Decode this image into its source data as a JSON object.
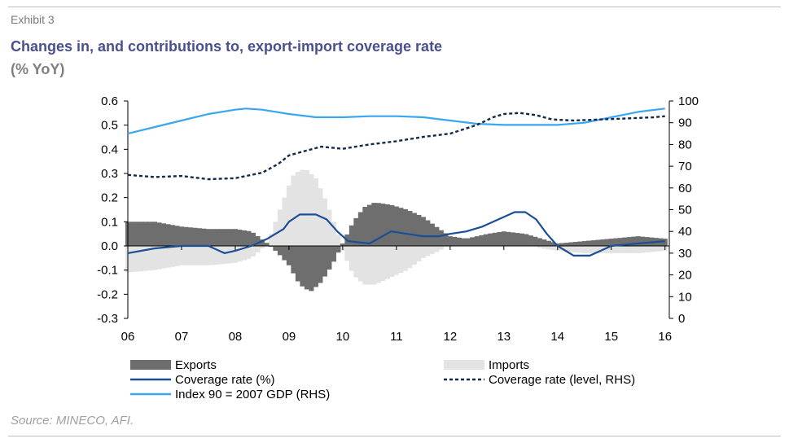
{
  "header": {
    "exhibit": "Exhibit 3",
    "title": "Changes in, and contributions to, export-import coverage rate",
    "subtitle": "(% YoY)"
  },
  "source": "Source: MINECO, AFI.",
  "colors": {
    "exports": "#6e6e6e",
    "imports": "#e3e3e3",
    "coverage_pct": "#1a4f96",
    "coverage_level": "#13294b",
    "index_gdp": "#3aa6f0",
    "title": "#4a4f8f"
  },
  "chart_data": {
    "type": "bar",
    "x_tick_labels": [
      "06",
      "07",
      "08",
      "09",
      "10",
      "11",
      "12",
      "13",
      "14",
      "15",
      "16"
    ],
    "x_range": [
      2006.0,
      2016.08
    ],
    "y_left": {
      "ticks": [
        "0.6",
        "0.5",
        "0.4",
        "0.3",
        "0.2",
        "0.1",
        "0.0",
        "-0.1",
        "-0.2",
        "-0.3"
      ],
      "range": [
        -0.3,
        0.6
      ]
    },
    "y_right": {
      "ticks": [
        "100",
        "90",
        "80",
        "70",
        "60",
        "50",
        "40",
        "30",
        "20",
        "10",
        "0"
      ],
      "range": [
        0,
        100
      ]
    },
    "grid": false,
    "legend_position": "bottom",
    "series": [
      {
        "key": "exports",
        "name": "Exports",
        "type": "bar",
        "axis": "left",
        "x": [
          2006.0,
          2006.5,
          2007.0,
          2007.5,
          2008.0,
          2008.3,
          2008.6,
          2008.8,
          2009.0,
          2009.2,
          2009.4,
          2009.6,
          2009.8,
          2010.0,
          2010.2,
          2010.4,
          2010.6,
          2010.9,
          2011.2,
          2011.5,
          2011.8,
          2012.0,
          2012.3,
          2012.7,
          2013.0,
          2013.4,
          2013.7,
          2014.0,
          2014.5,
          2015.0,
          2015.5,
          2016.0
        ],
        "values": [
          0.1,
          0.1,
          0.08,
          0.07,
          0.07,
          0.06,
          0.01,
          -0.03,
          -0.08,
          -0.16,
          -0.19,
          -0.15,
          -0.08,
          0.01,
          0.1,
          0.16,
          0.18,
          0.17,
          0.15,
          0.12,
          0.07,
          0.04,
          0.03,
          0.05,
          0.06,
          0.05,
          0.03,
          0.01,
          0.02,
          0.03,
          0.04,
          0.03
        ]
      },
      {
        "key": "imports",
        "name": "Imports",
        "type": "bar",
        "axis": "left",
        "x": [
          2006.0,
          2006.5,
          2007.0,
          2007.5,
          2008.0,
          2008.3,
          2008.6,
          2008.8,
          2009.0,
          2009.1,
          2009.3,
          2009.5,
          2009.7,
          2009.9,
          2010.0,
          2010.2,
          2010.4,
          2010.6,
          2010.9,
          2011.2,
          2011.5,
          2011.8,
          2012.0,
          2012.3,
          2012.7,
          2013.0,
          2013.4,
          2013.7,
          2014.0,
          2014.5,
          2015.0,
          2015.5,
          2016.0
        ],
        "values": [
          -0.11,
          -0.1,
          -0.08,
          -0.08,
          -0.07,
          -0.05,
          0.01,
          0.13,
          0.25,
          0.3,
          0.32,
          0.28,
          0.18,
          0.06,
          -0.02,
          -0.12,
          -0.16,
          -0.16,
          -0.13,
          -0.1,
          -0.05,
          -0.02,
          0.01,
          0.02,
          0.01,
          0.02,
          0.01,
          -0.01,
          -0.02,
          -0.03,
          -0.03,
          -0.03,
          -0.02
        ]
      },
      {
        "key": "coverage_pct",
        "name": "Coverage rate (%)",
        "type": "line",
        "axis": "left",
        "x": [
          2006.0,
          2006.5,
          2007.0,
          2007.5,
          2007.8,
          2008.0,
          2008.3,
          2008.6,
          2008.9,
          2009.0,
          2009.2,
          2009.5,
          2009.7,
          2009.9,
          2010.1,
          2010.5,
          2010.9,
          2011.2,
          2011.5,
          2011.8,
          2012.0,
          2012.3,
          2012.6,
          2012.9,
          2013.2,
          2013.4,
          2013.6,
          2013.8,
          2014.0,
          2014.3,
          2014.6,
          2015.0,
          2015.5,
          2016.0
        ],
        "values": [
          -0.03,
          -0.01,
          0.0,
          0.0,
          -0.03,
          -0.02,
          0.0,
          0.03,
          0.07,
          0.1,
          0.13,
          0.13,
          0.11,
          0.06,
          0.02,
          0.01,
          0.06,
          0.05,
          0.04,
          0.04,
          0.05,
          0.06,
          0.08,
          0.11,
          0.14,
          0.14,
          0.11,
          0.05,
          0.0,
          -0.04,
          -0.04,
          0.0,
          0.01,
          0.02
        ]
      },
      {
        "key": "coverage_level",
        "name": "Coverage rate (level, RHS)",
        "type": "line",
        "axis": "right",
        "x": [
          2006.0,
          2006.5,
          2007.0,
          2007.5,
          2008.0,
          2008.5,
          2008.8,
          2009.0,
          2009.3,
          2009.6,
          2010.0,
          2010.5,
          2011.0,
          2011.5,
          2012.0,
          2012.5,
          2012.8,
          2013.0,
          2013.3,
          2013.6,
          2013.9,
          2014.3,
          2014.8,
          2015.3,
          2015.8,
          2016.0
        ],
        "values": [
          66,
          65,
          65.5,
          64,
          64.5,
          67,
          71,
          75,
          77,
          79,
          78,
          80,
          81.5,
          83.5,
          85,
          89,
          92.5,
          94,
          94.5,
          93.5,
          91.5,
          91,
          91.5,
          92,
          92.5,
          93
        ]
      },
      {
        "key": "index_gdp",
        "name": "Index 90 = 2007 GDP  (RHS)",
        "type": "line",
        "axis": "right",
        "x": [
          2006.0,
          2006.5,
          2007.0,
          2007.5,
          2008.0,
          2008.2,
          2008.5,
          2009.0,
          2009.5,
          2010.0,
          2010.5,
          2011.0,
          2011.5,
          2012.0,
          2012.5,
          2013.0,
          2013.5,
          2014.0,
          2014.5,
          2015.0,
          2015.5,
          2016.0
        ],
        "values": [
          85,
          88,
          91,
          94,
          96,
          96.5,
          96,
          94,
          92.5,
          92.5,
          93,
          93,
          92.5,
          91,
          89.5,
          89,
          89,
          89,
          90,
          92.5,
          95,
          96.5
        ]
      }
    ]
  }
}
